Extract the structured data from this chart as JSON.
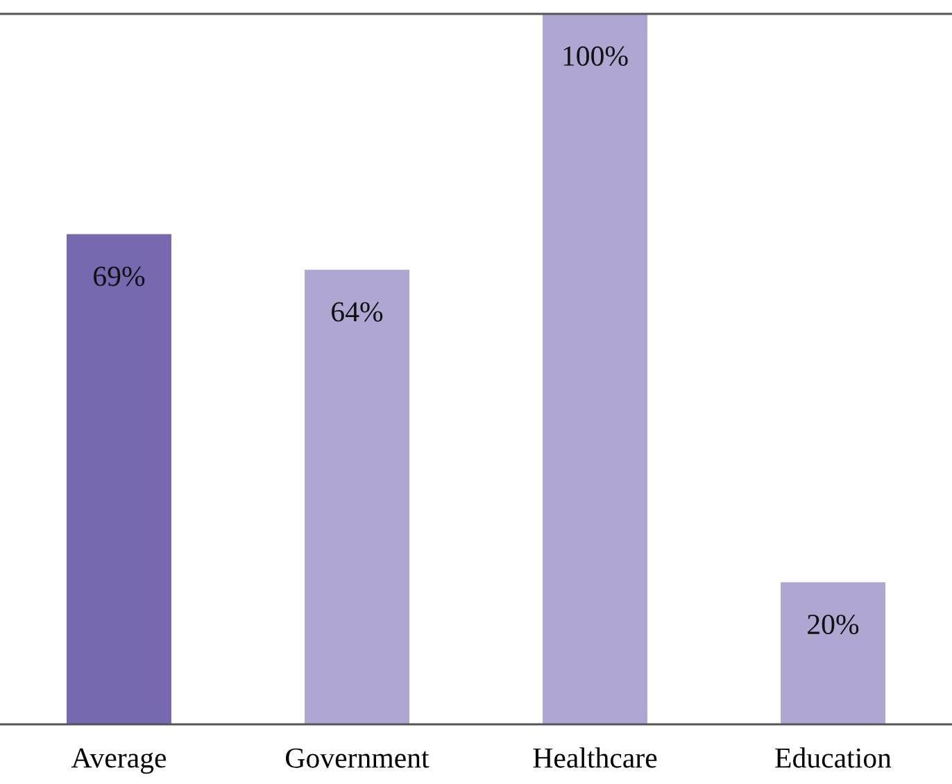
{
  "chart_data": {
    "type": "bar",
    "categories": [
      "Average",
      "Government",
      "Healthcare",
      "Education"
    ],
    "values": [
      69,
      64,
      100,
      20
    ],
    "colors": [
      "#7868b0",
      "#afa6d2",
      "#afa6d2",
      "#afa6d2"
    ],
    "value_labels": [
      "69%",
      "64%",
      "100%",
      "20%"
    ],
    "ylim": [
      0,
      100
    ],
    "tick_labels": "x",
    "grid": false,
    "legend": false
  }
}
